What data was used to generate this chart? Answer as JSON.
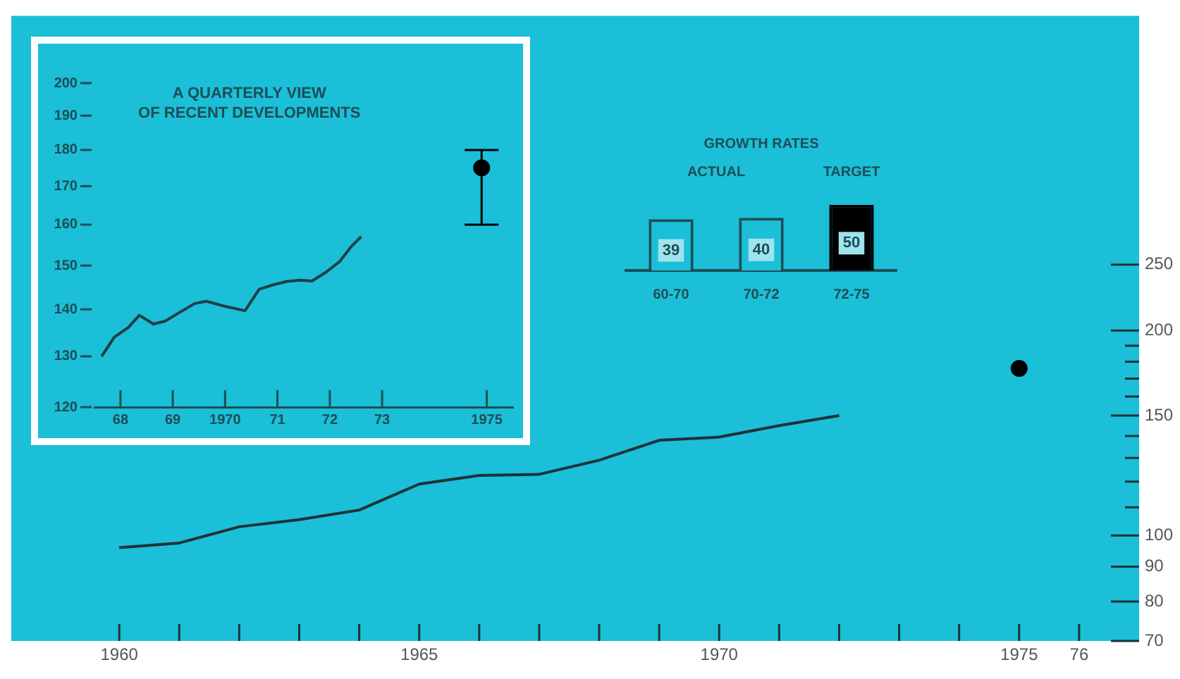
{
  "chart_data": [
    {
      "type": "line",
      "log": true,
      "xlim": [
        1958.2,
        1977
      ],
      "xticks": [
        1960,
        {
          "value": 1961,
          "label": null
        },
        {
          "value": 1962,
          "label": null
        },
        {
          "value": 1963,
          "label": null
        },
        {
          "value": 1964,
          "label": null
        },
        1965,
        {
          "value": 1966,
          "label": null
        },
        {
          "value": 1967,
          "label": null
        },
        {
          "value": 1968,
          "label": null
        },
        {
          "value": 1969,
          "label": null
        },
        1970,
        {
          "value": 1971,
          "label": null
        },
        {
          "value": 1972,
          "label": null
        },
        {
          "value": 1973,
          "label": null
        },
        {
          "value": 1974,
          "label": null
        },
        1975,
        {
          "value": 1976,
          "label": "76"
        }
      ],
      "ylim": [
        70,
        580
      ],
      "yticks": [
        70,
        80,
        90,
        100,
        {
          "value": 110,
          "label": null
        },
        {
          "value": 120,
          "label": null
        },
        {
          "value": 130,
          "label": null
        },
        {
          "value": 140,
          "label": null
        },
        150,
        {
          "value": 160,
          "label": null
        },
        {
          "value": 170,
          "label": null
        },
        {
          "value": 180,
          "label": null
        },
        {
          "value": 190,
          "label": null
        },
        200,
        250
      ],
      "series": [
        {
          "type": "line",
          "color": "#1d3238",
          "marker": "none",
          "x": [
            1960,
            1961,
            1962,
            1963,
            1964,
            1965,
            1966,
            1967,
            1968,
            1969,
            1970,
            1971,
            1972
          ],
          "values": [
            96,
            97.5,
            103,
            105.5,
            109,
            119,
            122.5,
            123,
            129,
            138,
            139.5,
            145,
            150
          ]
        },
        {
          "type": "scatter",
          "color": "#000000",
          "marker": "circle",
          "x": [
            1975
          ],
          "values": [
            176
          ]
        }
      ]
    },
    {
      "type": "line",
      "title": "A QUARTERLY VIEW\nOF RECENT DEVELOPMENTS",
      "log": true,
      "xlim": [
        "1968-01-01",
        "1976-01-01"
      ],
      "xticks": [
        {
          "value": "1968-07-01",
          "label": "68"
        },
        {
          "value": "1969-07-01",
          "label": "69"
        },
        {
          "value": "1970-07-01",
          "label": "1970"
        },
        {
          "value": "1971-07-01",
          "label": "71"
        },
        {
          "value": "1972-07-01",
          "label": "72"
        },
        {
          "value": "1973-07-01",
          "label": "73"
        },
        {
          "value": "1975-07-01",
          "label": "1975"
        }
      ],
      "ylim": [
        120,
        200
      ],
      "yticks": [
        120,
        130,
        140,
        150,
        160,
        170,
        180,
        190,
        200
      ],
      "series": [
        {
          "type": "line",
          "color": "#1d3f46",
          "marker": "none",
          "x": [
            "1968-02-20",
            "1968-05-19",
            "1968-08-22",
            "1968-11-10",
            "1969-02-16",
            "1969-05-08",
            "1969-08-11",
            "1969-12-02",
            "1970-02-20",
            "1970-06-28",
            "1970-11-17",
            "1971-02-24",
            "1971-05-30",
            "1971-09-05",
            "1971-12-09",
            "1972-02-27",
            "1972-06-02",
            "1972-09-09",
            "1972-11-28",
            "1973-02-05"
          ],
          "values": [
            130,
            134,
            136,
            138.7,
            136.8,
            137.4,
            139.2,
            141.3,
            141.8,
            140.7,
            139.7,
            144.5,
            145.5,
            146.3,
            146.6,
            146.4,
            148.4,
            151,
            154.6,
            157
          ]
        },
        {
          "type": "scatter",
          "color": "#000000",
          "marker": "circle",
          "x": [
            "1975-05-26"
          ],
          "values": [
            175
          ],
          "errors": [
            [
              160,
              180
            ]
          ]
        }
      ]
    },
    {
      "type": "bar",
      "title": "GROWTH RATES",
      "categories": [
        "60-70",
        "70-72",
        "72-75"
      ],
      "stacked": true,
      "data_labels": true,
      "series": [
        {
          "name": "ACTUAL",
          "color": "#1bbfd8",
          "values": [
            39,
            40,
            null
          ]
        },
        {
          "name": "TARGET",
          "color": "#000000",
          "values": [
            null,
            null,
            50
          ]
        }
      ]
    }
  ]
}
